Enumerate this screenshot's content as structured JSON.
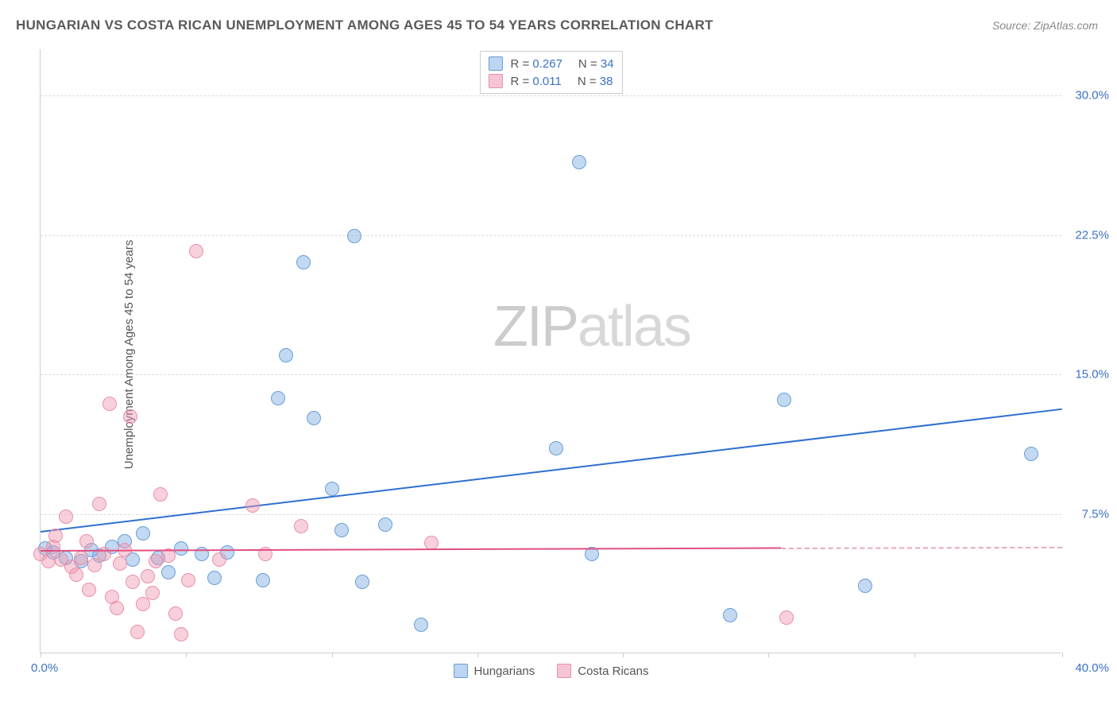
{
  "title": "HUNGARIAN VS COSTA RICAN UNEMPLOYMENT AMONG AGES 45 TO 54 YEARS CORRELATION CHART",
  "source": "Source: ZipAtlas.com",
  "ylabel": "Unemployment Among Ages 45 to 54 years",
  "watermark_a": "ZIP",
  "watermark_b": "atlas",
  "chart": {
    "type": "scatter",
    "xlim": [
      0,
      40
    ],
    "ylim": [
      0,
      32.5
    ],
    "x_origin_label": "0.0%",
    "x_max_label": "40.0%",
    "x_max_color": "#3b72c4",
    "x_origin_color": "#3b72c4",
    "ytick_values": [
      7.5,
      15.0,
      22.5,
      30.0
    ],
    "ytick_labels": [
      "7.5%",
      "15.0%",
      "22.5%",
      "30.0%"
    ],
    "ytick_color": "#3b72c4",
    "xtick_positions": [
      0,
      5.7,
      11.4,
      17.1,
      22.8,
      28.5,
      34.2,
      40
    ],
    "grid_color": "#dddddd",
    "background_color": "#ffffff",
    "marker_radius": 9,
    "series": [
      {
        "name": "Hungarians",
        "label": "Hungarians",
        "fill": "rgba(120,170,225,0.45)",
        "stroke": "#6a9ed8",
        "swatch_fill": "#bcd5f0",
        "swatch_border": "#6a9ed8",
        "r_value": "0.267",
        "n_value": "34",
        "trend": {
          "x1": 0,
          "y1": 6.6,
          "x2": 40,
          "y2": 13.2,
          "color": "#2f6fd0",
          "width": 2
        },
        "points": [
          [
            0.2,
            5.6
          ],
          [
            0.5,
            5.4
          ],
          [
            1.0,
            5.1
          ],
          [
            1.6,
            4.9
          ],
          [
            2.0,
            5.5
          ],
          [
            2.3,
            5.2
          ],
          [
            2.8,
            5.7
          ],
          [
            3.3,
            6.0
          ],
          [
            3.6,
            5.0
          ],
          [
            4.0,
            6.4
          ],
          [
            4.6,
            5.1
          ],
          [
            5.0,
            4.3
          ],
          [
            5.5,
            5.6
          ],
          [
            6.3,
            5.3
          ],
          [
            6.8,
            4.0
          ],
          [
            7.3,
            5.4
          ],
          [
            8.7,
            3.9
          ],
          [
            9.3,
            13.7
          ],
          [
            9.6,
            16.0
          ],
          [
            10.3,
            21.0
          ],
          [
            10.7,
            12.6
          ],
          [
            11.4,
            8.8
          ],
          [
            11.8,
            6.6
          ],
          [
            12.3,
            22.4
          ],
          [
            12.6,
            3.8
          ],
          [
            13.5,
            6.9
          ],
          [
            14.9,
            1.5
          ],
          [
            20.2,
            11.0
          ],
          [
            21.1,
            26.4
          ],
          [
            21.6,
            5.3
          ],
          [
            27.0,
            2.0
          ],
          [
            29.1,
            13.6
          ],
          [
            32.3,
            3.6
          ],
          [
            38.8,
            10.7
          ]
        ]
      },
      {
        "name": "Costa Ricans",
        "label": "Costa Ricans",
        "fill": "rgba(240,150,175,0.45)",
        "stroke": "#e890aa",
        "swatch_fill": "#f4c6d3",
        "swatch_border": "#e890aa",
        "r_value": "0.011",
        "n_value": "38",
        "trend": {
          "x1": 0,
          "y1": 5.55,
          "x2": 29,
          "y2": 5.7,
          "color": "#e05080",
          "width": 2
        },
        "trend_extrapolate": {
          "x1": 29,
          "y1": 5.7,
          "x2": 40,
          "y2": 5.75,
          "color": "#e8a9bb",
          "dashed": true
        },
        "points": [
          [
            0.0,
            5.3
          ],
          [
            0.3,
            4.9
          ],
          [
            0.5,
            5.7
          ],
          [
            0.6,
            6.3
          ],
          [
            0.8,
            5.0
          ],
          [
            1.0,
            7.3
          ],
          [
            1.2,
            4.6
          ],
          [
            1.4,
            4.2
          ],
          [
            1.6,
            5.1
          ],
          [
            1.8,
            6.0
          ],
          [
            1.9,
            3.4
          ],
          [
            2.1,
            4.7
          ],
          [
            2.3,
            8.0
          ],
          [
            2.5,
            5.3
          ],
          [
            2.7,
            13.4
          ],
          [
            2.8,
            3.0
          ],
          [
            3.0,
            2.4
          ],
          [
            3.1,
            4.8
          ],
          [
            3.3,
            5.5
          ],
          [
            3.5,
            12.7
          ],
          [
            3.6,
            3.8
          ],
          [
            3.8,
            1.1
          ],
          [
            4.0,
            2.6
          ],
          [
            4.2,
            4.1
          ],
          [
            4.4,
            3.2
          ],
          [
            4.5,
            4.9
          ],
          [
            4.7,
            8.5
          ],
          [
            5.0,
            5.2
          ],
          [
            5.3,
            2.1
          ],
          [
            5.5,
            1.0
          ],
          [
            5.8,
            3.9
          ],
          [
            6.1,
            21.6
          ],
          [
            7.0,
            5.0
          ],
          [
            8.3,
            7.9
          ],
          [
            8.8,
            5.3
          ],
          [
            10.2,
            6.8
          ],
          [
            15.3,
            5.9
          ],
          [
            29.2,
            1.9
          ]
        ]
      }
    ],
    "legend_top_r_label": "R = ",
    "legend_top_n_label": "N = ",
    "legend_top_r_color": "#3b72c4",
    "legend_top_n_color": "#3b72c4"
  }
}
